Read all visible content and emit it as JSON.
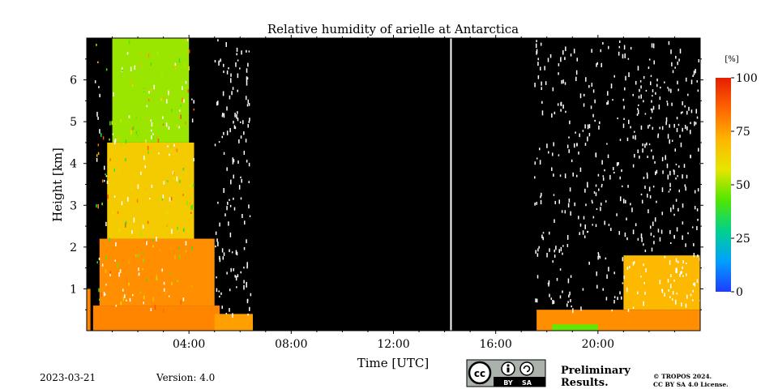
{
  "chart_data": {
    "type": "heatmap",
    "title": "Relative humidity of arielle at Antarctica",
    "xlabel": "Time [UTC]",
    "ylabel": "Height [km]",
    "x_unit": "hours UTC",
    "xlim": [
      0,
      24
    ],
    "ylim": [
      0,
      7
    ],
    "x_ticks": [
      "04:00",
      "08:00",
      "12:00",
      "16:00",
      "20:00"
    ],
    "x_tick_values": [
      4,
      8,
      12,
      16,
      20
    ],
    "y_ticks": [
      1,
      2,
      3,
      4,
      5,
      6
    ],
    "colorbar": {
      "unit": "[%]",
      "range": [
        0,
        100
      ],
      "ticks": [
        0,
        25,
        50,
        75,
        100
      ],
      "colors": [
        "#1e3cff",
        "#00a0ff",
        "#00d28c",
        "#50e600",
        "#e6e600",
        "#ffb400",
        "#ff6400",
        "#e61e00"
      ]
    },
    "no_data_color": "#000000",
    "gap_times": [
      14.25
    ],
    "humidity_regions": [
      {
        "x": [
          0,
          0.15
        ],
        "y": [
          0,
          1.0
        ],
        "rh": 80
      },
      {
        "x": [
          0.15,
          0.25
        ],
        "y": [
          0,
          7
        ],
        "rh": 0
      },
      {
        "x": [
          0.25,
          5.2
        ],
        "y": [
          0,
          0.6
        ],
        "rh": 80
      },
      {
        "x": [
          0.5,
          5.0
        ],
        "y": [
          0.6,
          2.2
        ],
        "rh": 78
      },
      {
        "x": [
          0.8,
          4.2
        ],
        "y": [
          2.2,
          4.5
        ],
        "rh": 65
      },
      {
        "x": [
          1.0,
          4.0
        ],
        "y": [
          4.5,
          7
        ],
        "rh": 50
      },
      {
        "x": [
          5.0,
          6.5
        ],
        "y": [
          0,
          0.4
        ],
        "rh": 75
      },
      {
        "x": [
          17.6,
          24
        ],
        "y": [
          0,
          0.5
        ],
        "rh": 78
      },
      {
        "x": [
          18.2,
          20.0
        ],
        "y": [
          0,
          0.15
        ],
        "rh": 45
      },
      {
        "x": [
          21.0,
          24
        ],
        "y": [
          0.5,
          1.8
        ],
        "rh": 70
      }
    ]
  },
  "footer": {
    "date": "2023-03-21",
    "version": "Version: 4.0",
    "preliminary_line1": "Preliminary",
    "preliminary_line2": "Results.",
    "copyright_line1": "© TROPOS 2024.",
    "copyright_line2": "CC BY SA 4.0 License.",
    "license_badge": [
      "cc",
      "BY",
      "SA"
    ]
  }
}
